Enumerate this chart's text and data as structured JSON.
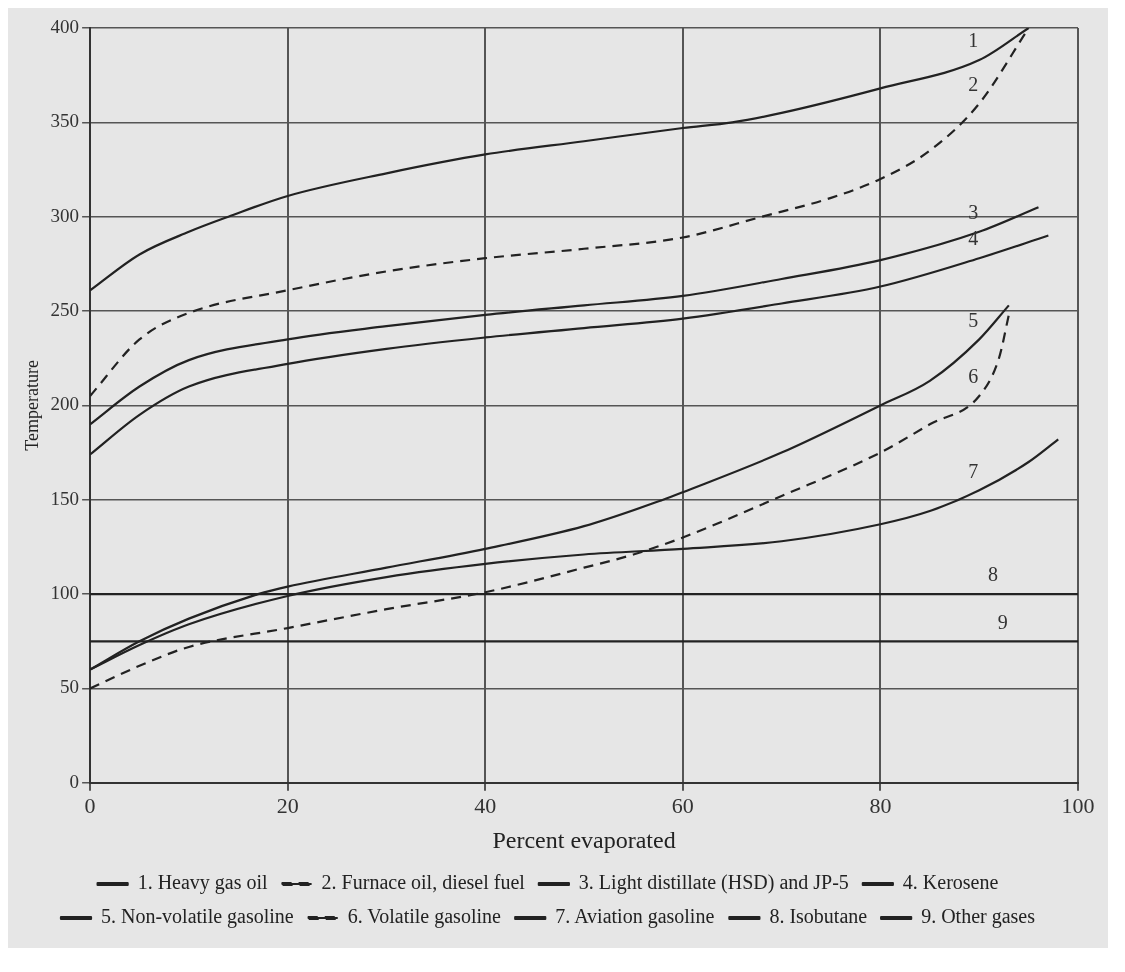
{
  "chart_data": {
    "type": "line",
    "xlabel": "Percent evaporated",
    "ylabel": "Temperature",
    "xlim": [
      0,
      100
    ],
    "xticks": [
      0,
      20,
      40,
      60,
      80,
      100
    ],
    "ylim": [
      0,
      400
    ],
    "yticks": [
      0,
      50,
      100,
      150,
      200,
      250,
      300,
      350,
      400
    ],
    "grid": true,
    "legend": "bottom",
    "marker": "none",
    "series": [
      {
        "name": "1. Heavy gas oil",
        "color": "#222222",
        "line_style": "solid",
        "x": [
          0,
          5,
          10,
          14,
          20,
          30,
          40,
          50,
          60,
          65,
          70,
          80,
          90,
          95
        ],
        "values": [
          261,
          280,
          292,
          300,
          311,
          323,
          333,
          340,
          347,
          350,
          355,
          368,
          383,
          400
        ]
      },
      {
        "name": "2. Furnace oil, diesel fuel",
        "color": "#222222",
        "line_style": "dashed",
        "x": [
          0,
          5,
          10,
          20,
          30,
          40,
          50,
          60,
          68,
          75,
          80,
          85,
          90,
          95
        ],
        "values": [
          205,
          235,
          249,
          261,
          271,
          278,
          283,
          289,
          300,
          310,
          320,
          335,
          360,
          400
        ]
      },
      {
        "name": "3. Light distillate (HSD) and JP-5",
        "color": "#222222",
        "line_style": "solid",
        "x": [
          0,
          5,
          10,
          20,
          30,
          40,
          50,
          60,
          70,
          80,
          90,
          96
        ],
        "values": [
          190,
          210,
          224,
          235,
          242,
          248,
          253,
          258,
          267,
          277,
          292,
          305
        ]
      },
      {
        "name": "4. Kerosene",
        "color": "#222222",
        "line_style": "solid",
        "x": [
          0,
          5,
          10,
          20,
          30,
          40,
          50,
          60,
          70,
          80,
          90,
          97
        ],
        "values": [
          174,
          195,
          210,
          222,
          230,
          236,
          241,
          246,
          254,
          263,
          278,
          290
        ]
      },
      {
        "name": "5. Non-volatile gasoline",
        "color": "#222222",
        "line_style": "solid",
        "x": [
          0,
          5,
          10,
          17,
          20,
          30,
          40,
          50,
          58,
          60,
          70,
          80,
          85,
          90,
          93
        ],
        "values": [
          60,
          75,
          87,
          100,
          104,
          114,
          124,
          136,
          150,
          154,
          175,
          200,
          213,
          235,
          253
        ]
      },
      {
        "name": "6. Volatile gasoline",
        "color": "#222222",
        "line_style": "dashed",
        "x": [
          0,
          5,
          10,
          20,
          30,
          40,
          50,
          55,
          60,
          70,
          80,
          85,
          90,
          92,
          93
        ],
        "values": [
          50,
          62,
          72,
          82,
          92,
          101,
          114,
          121,
          130,
          152,
          175,
          190,
          205,
          225,
          248
        ]
      },
      {
        "name": "7. Aviation gasoline",
        "color": "#222222",
        "line_style": "solid",
        "x": [
          0,
          5,
          10,
          20,
          30,
          40,
          50,
          60,
          70,
          80,
          85,
          90,
          95,
          98
        ],
        "values": [
          60,
          73,
          84,
          99,
          109,
          116,
          121,
          124,
          128,
          137,
          144,
          155,
          170,
          182
        ]
      },
      {
        "name": "8. Isobutane",
        "color": "#222222",
        "line_style": "solid",
        "x": [
          0,
          100
        ],
        "values": [
          100,
          100
        ]
      },
      {
        "name": "9. Other gases",
        "color": "#222222",
        "line_style": "solid",
        "x": [
          0,
          100
        ],
        "values": [
          75,
          75
        ]
      }
    ],
    "annotations": [
      {
        "text": "1",
        "x": 90,
        "y": 383
      },
      {
        "text": "2",
        "x": 90,
        "y": 360
      },
      {
        "text": "3",
        "x": 90,
        "y": 292
      },
      {
        "text": "4",
        "x": 90,
        "y": 278
      },
      {
        "text": "5",
        "x": 90,
        "y": 235
      },
      {
        "text": "6",
        "x": 90,
        "y": 205
      },
      {
        "text": "7",
        "x": 90,
        "y": 155
      },
      {
        "text": "8",
        "x": 92,
        "y": 100
      },
      {
        "text": "9",
        "x": 93,
        "y": 75
      }
    ]
  }
}
